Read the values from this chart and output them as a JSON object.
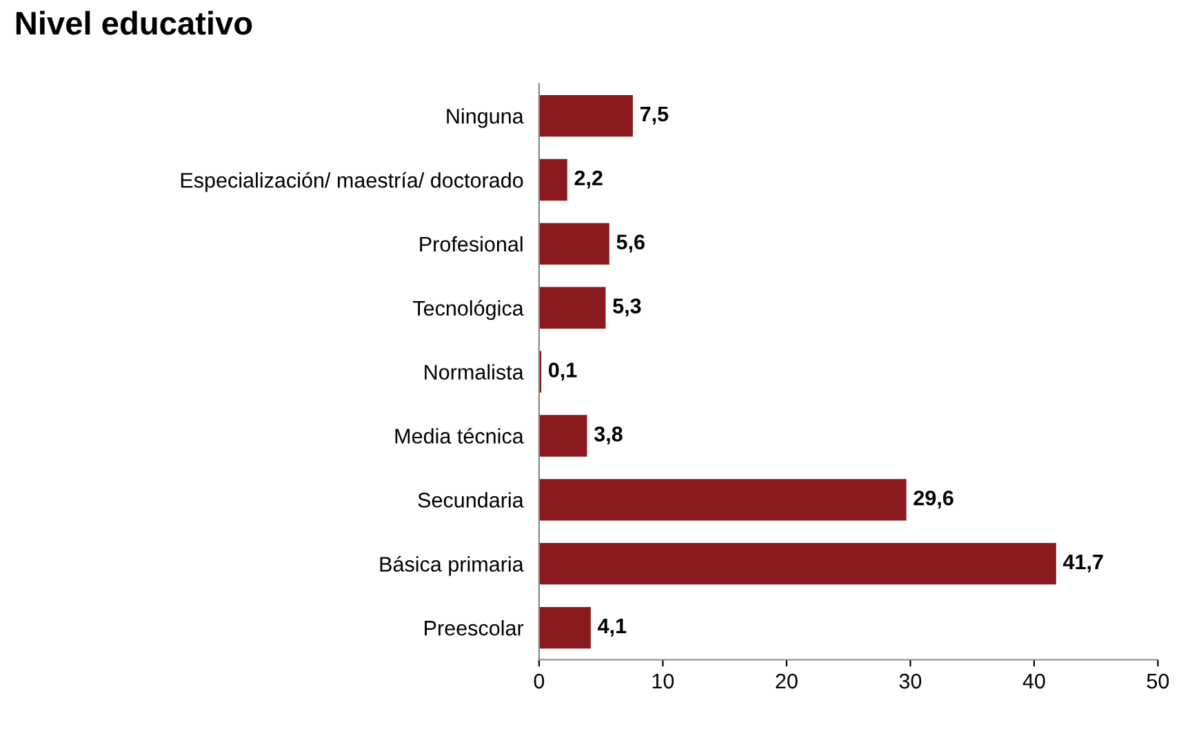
{
  "chart_data": {
    "type": "bar",
    "orientation": "horizontal",
    "title": "Nivel educativo",
    "categories": [
      "Ninguna",
      "Especialización/ maestría/ doctorado",
      "Profesional",
      "Tecnológica",
      "Normalista",
      "Media técnica",
      "Secundaria",
      "Básica primaria",
      "Preescolar"
    ],
    "values": [
      7.5,
      2.2,
      5.6,
      5.3,
      0.1,
      3.8,
      29.6,
      41.7,
      4.1
    ],
    "value_labels": [
      "7,5",
      "2,2",
      "5,6",
      "5,3",
      "0,1",
      "3,8",
      "29,6",
      "41,7",
      "4,1"
    ],
    "color": "#8b1a1f",
    "xlim": [
      0,
      50
    ],
    "xticks": [
      0,
      10,
      20,
      30,
      40,
      50
    ],
    "grid": false,
    "legend": false
  }
}
